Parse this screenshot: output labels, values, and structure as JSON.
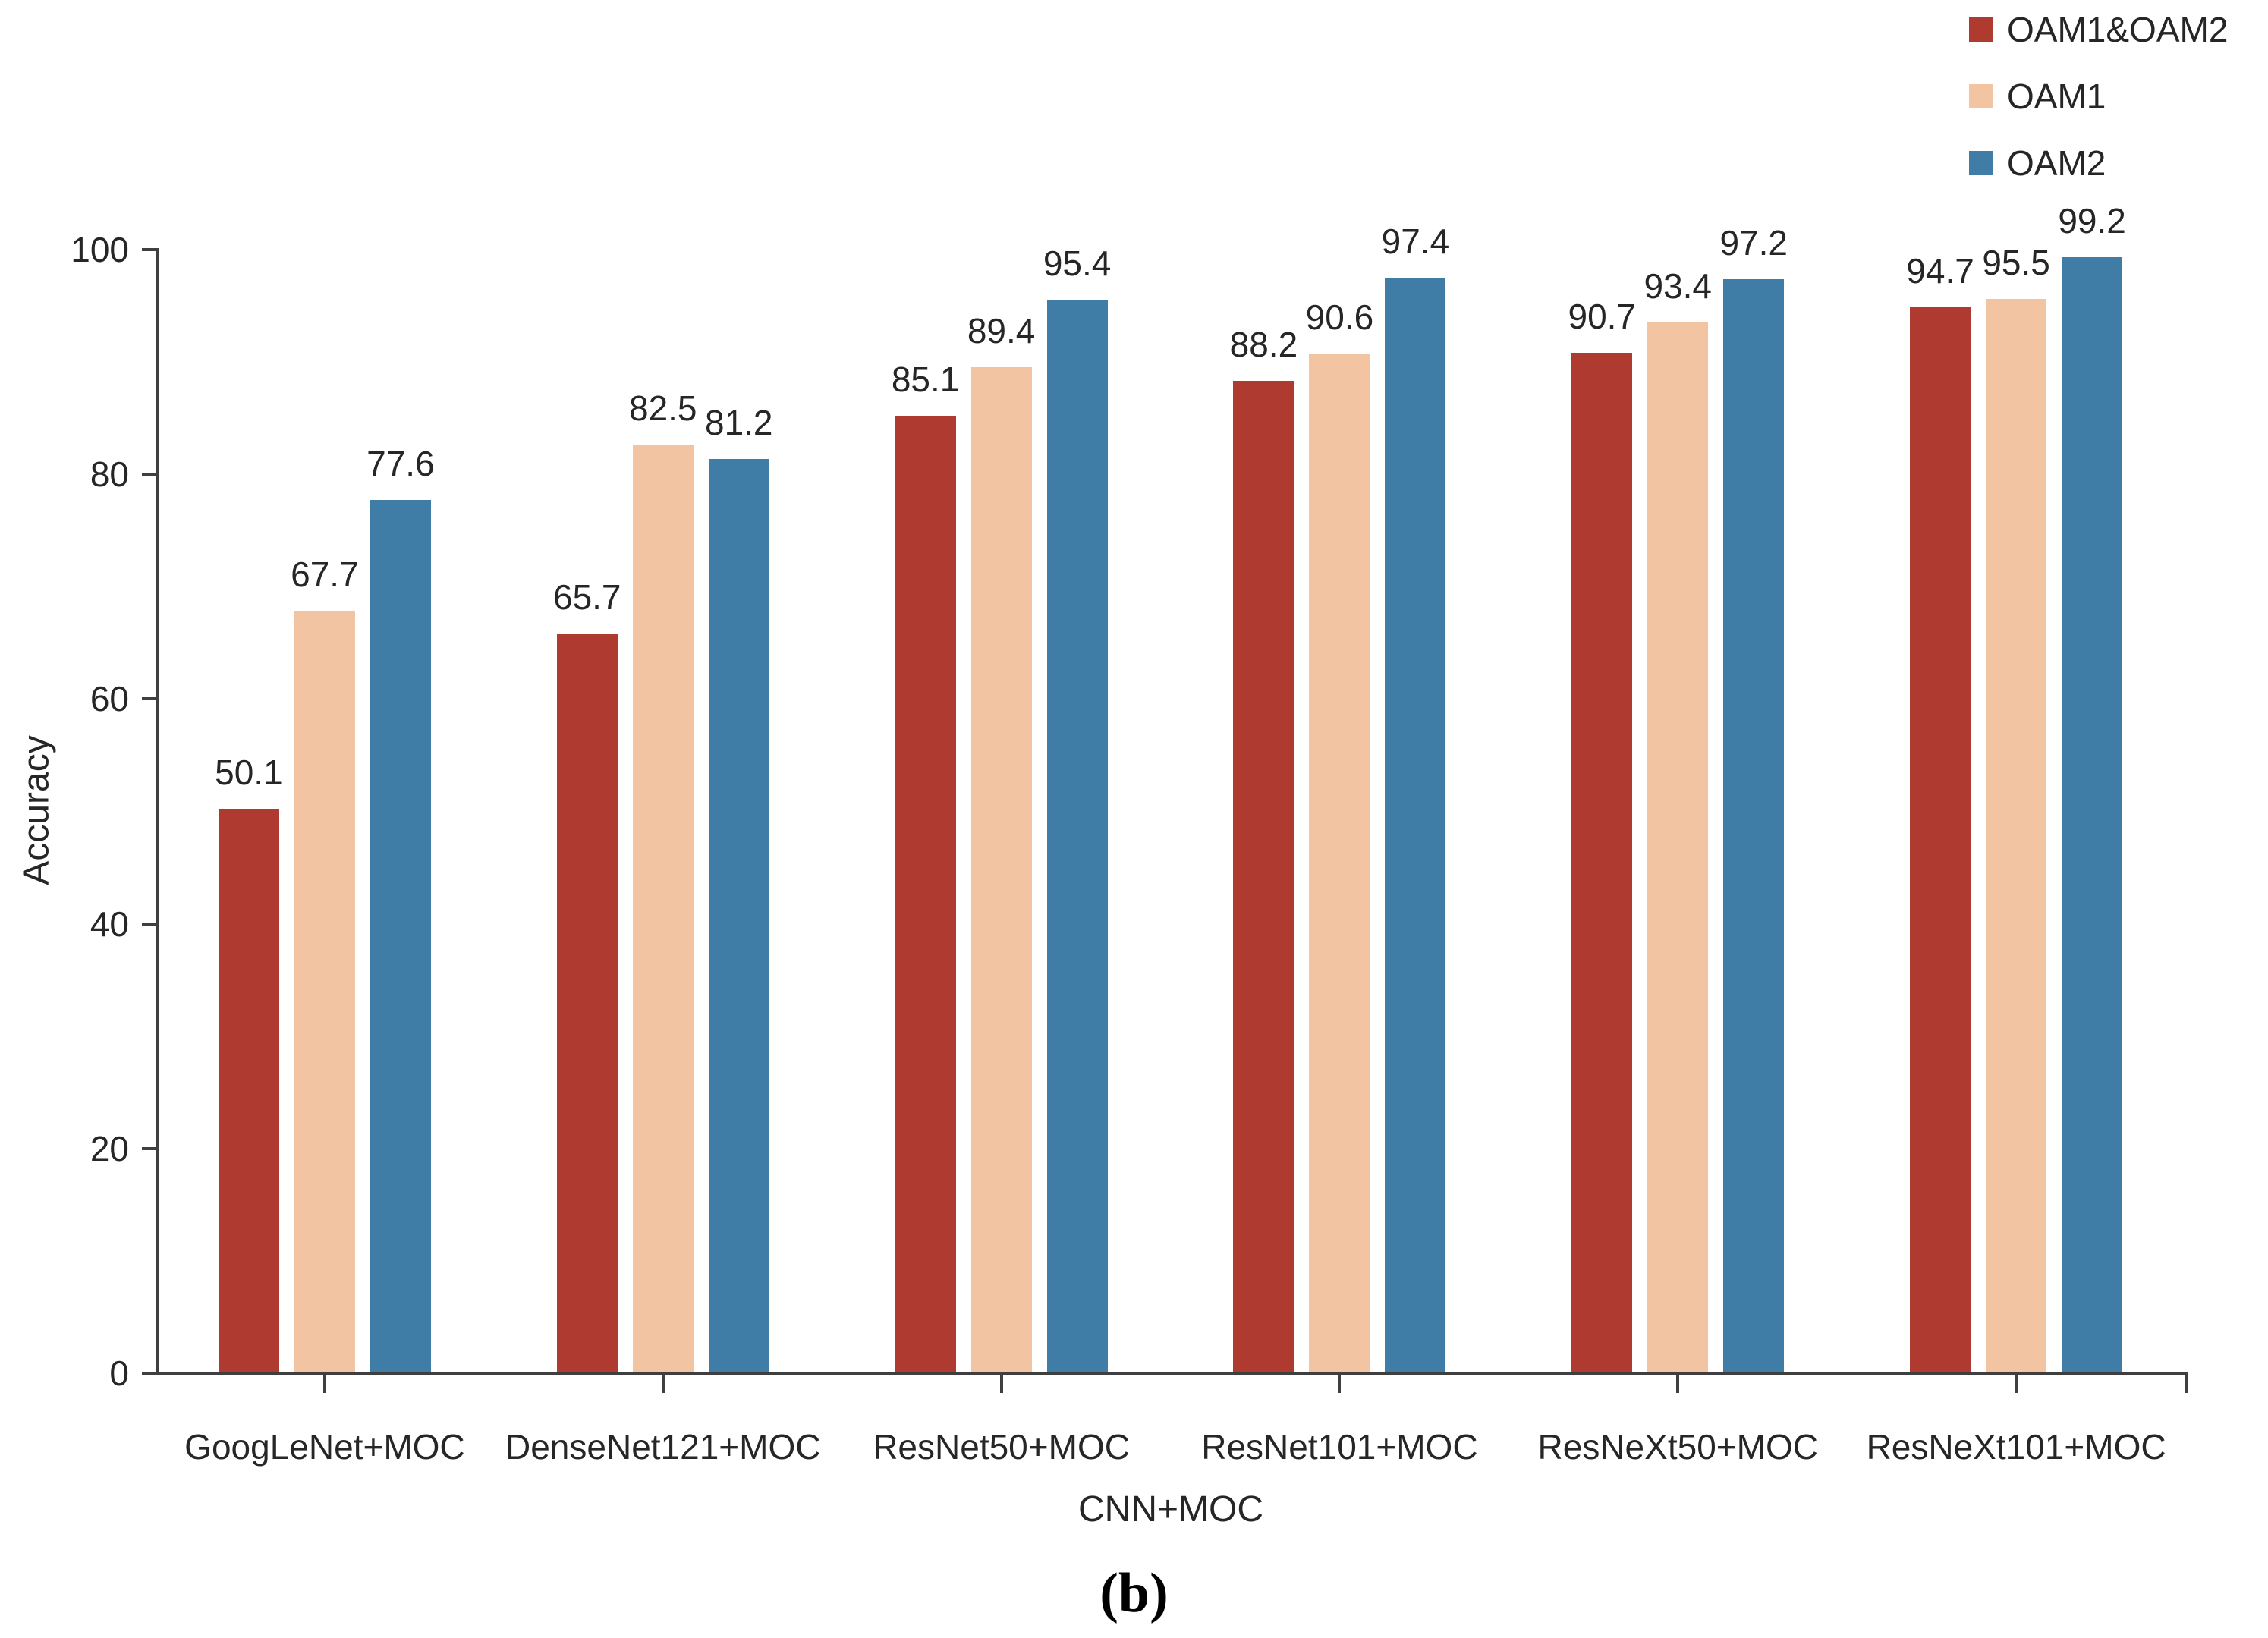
{
  "chart_data": {
    "type": "bar",
    "title": "",
    "categories": [
      "GoogLeNet+MOC",
      "DenseNet121+MOC",
      "ResNet50+MOC",
      "ResNet101+MOC",
      "ResNeXt50+MOC",
      "ResNeXt101+MOC"
    ],
    "series": [
      {
        "name": "OAM1&OAM2",
        "color": "#ae3a30",
        "values": [
          50.1,
          65.7,
          85.1,
          88.2,
          90.7,
          94.7
        ]
      },
      {
        "name": "OAM1",
        "color": "#f2c4a2",
        "values": [
          67.7,
          82.5,
          89.4,
          90.6,
          93.4,
          95.5
        ]
      },
      {
        "name": "OAM2",
        "color": "#3f7da6",
        "values": [
          77.6,
          81.2,
          95.4,
          97.4,
          97.2,
          99.2
        ]
      }
    ],
    "xlabel": "CNN+MOC",
    "ylabel": "Accuracy",
    "ylim": [
      0,
      100
    ],
    "yticks": [
      0,
      20,
      40,
      60,
      80,
      100
    ],
    "grid": false,
    "legend_position": "top-right",
    "data_labels": true
  },
  "caption": "(b)",
  "style": {
    "axis_color": "#3f3f3f",
    "text_color": "#262626"
  }
}
